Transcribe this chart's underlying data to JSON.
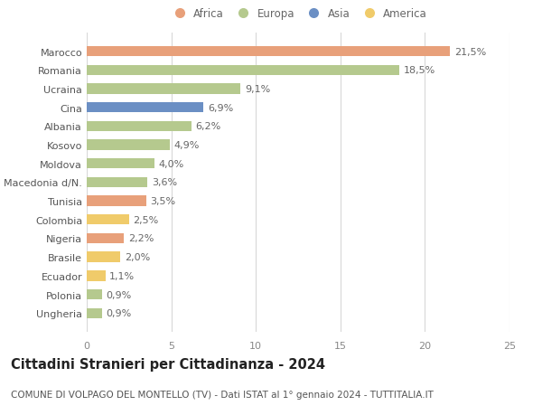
{
  "categories": [
    "Ungheria",
    "Polonia",
    "Ecuador",
    "Brasile",
    "Nigeria",
    "Colombia",
    "Tunisia",
    "Macedonia d/N.",
    "Moldova",
    "Kosovo",
    "Albania",
    "Cina",
    "Ucraina",
    "Romania",
    "Marocco"
  ],
  "values": [
    0.9,
    0.9,
    1.1,
    2.0,
    2.2,
    2.5,
    3.5,
    3.6,
    4.0,
    4.9,
    6.2,
    6.9,
    9.1,
    18.5,
    21.5
  ],
  "labels": [
    "0,9%",
    "0,9%",
    "1,1%",
    "2,0%",
    "2,2%",
    "2,5%",
    "3,5%",
    "3,6%",
    "4,0%",
    "4,9%",
    "6,2%",
    "6,9%",
    "9,1%",
    "18,5%",
    "21,5%"
  ],
  "colors": [
    "#b5c98e",
    "#b5c98e",
    "#f0cb6a",
    "#f0cb6a",
    "#e8a07a",
    "#f0cb6a",
    "#e8a07a",
    "#b5c98e",
    "#b5c98e",
    "#b5c98e",
    "#b5c98e",
    "#6b8fc4",
    "#b5c98e",
    "#b5c98e",
    "#e8a07a"
  ],
  "legend_labels": [
    "Africa",
    "Europa",
    "Asia",
    "America"
  ],
  "legend_colors": [
    "#e8a07a",
    "#b5c98e",
    "#6b8fc4",
    "#f0cb6a"
  ],
  "title": "Cittadini Stranieri per Cittadinanza - 2024",
  "subtitle": "COMUNE DI VOLPAGO DEL MONTELLO (TV) - Dati ISTAT al 1° gennaio 2024 - TUTTITALIA.IT",
  "xlim": [
    0,
    25
  ],
  "xticks": [
    0,
    5,
    10,
    15,
    20,
    25
  ],
  "bg_color": "#ffffff",
  "grid_color": "#d8d8d8",
  "bar_height": 0.55,
  "title_fontsize": 10.5,
  "subtitle_fontsize": 7.5,
  "label_fontsize": 8,
  "tick_fontsize": 8,
  "legend_fontsize": 8.5
}
